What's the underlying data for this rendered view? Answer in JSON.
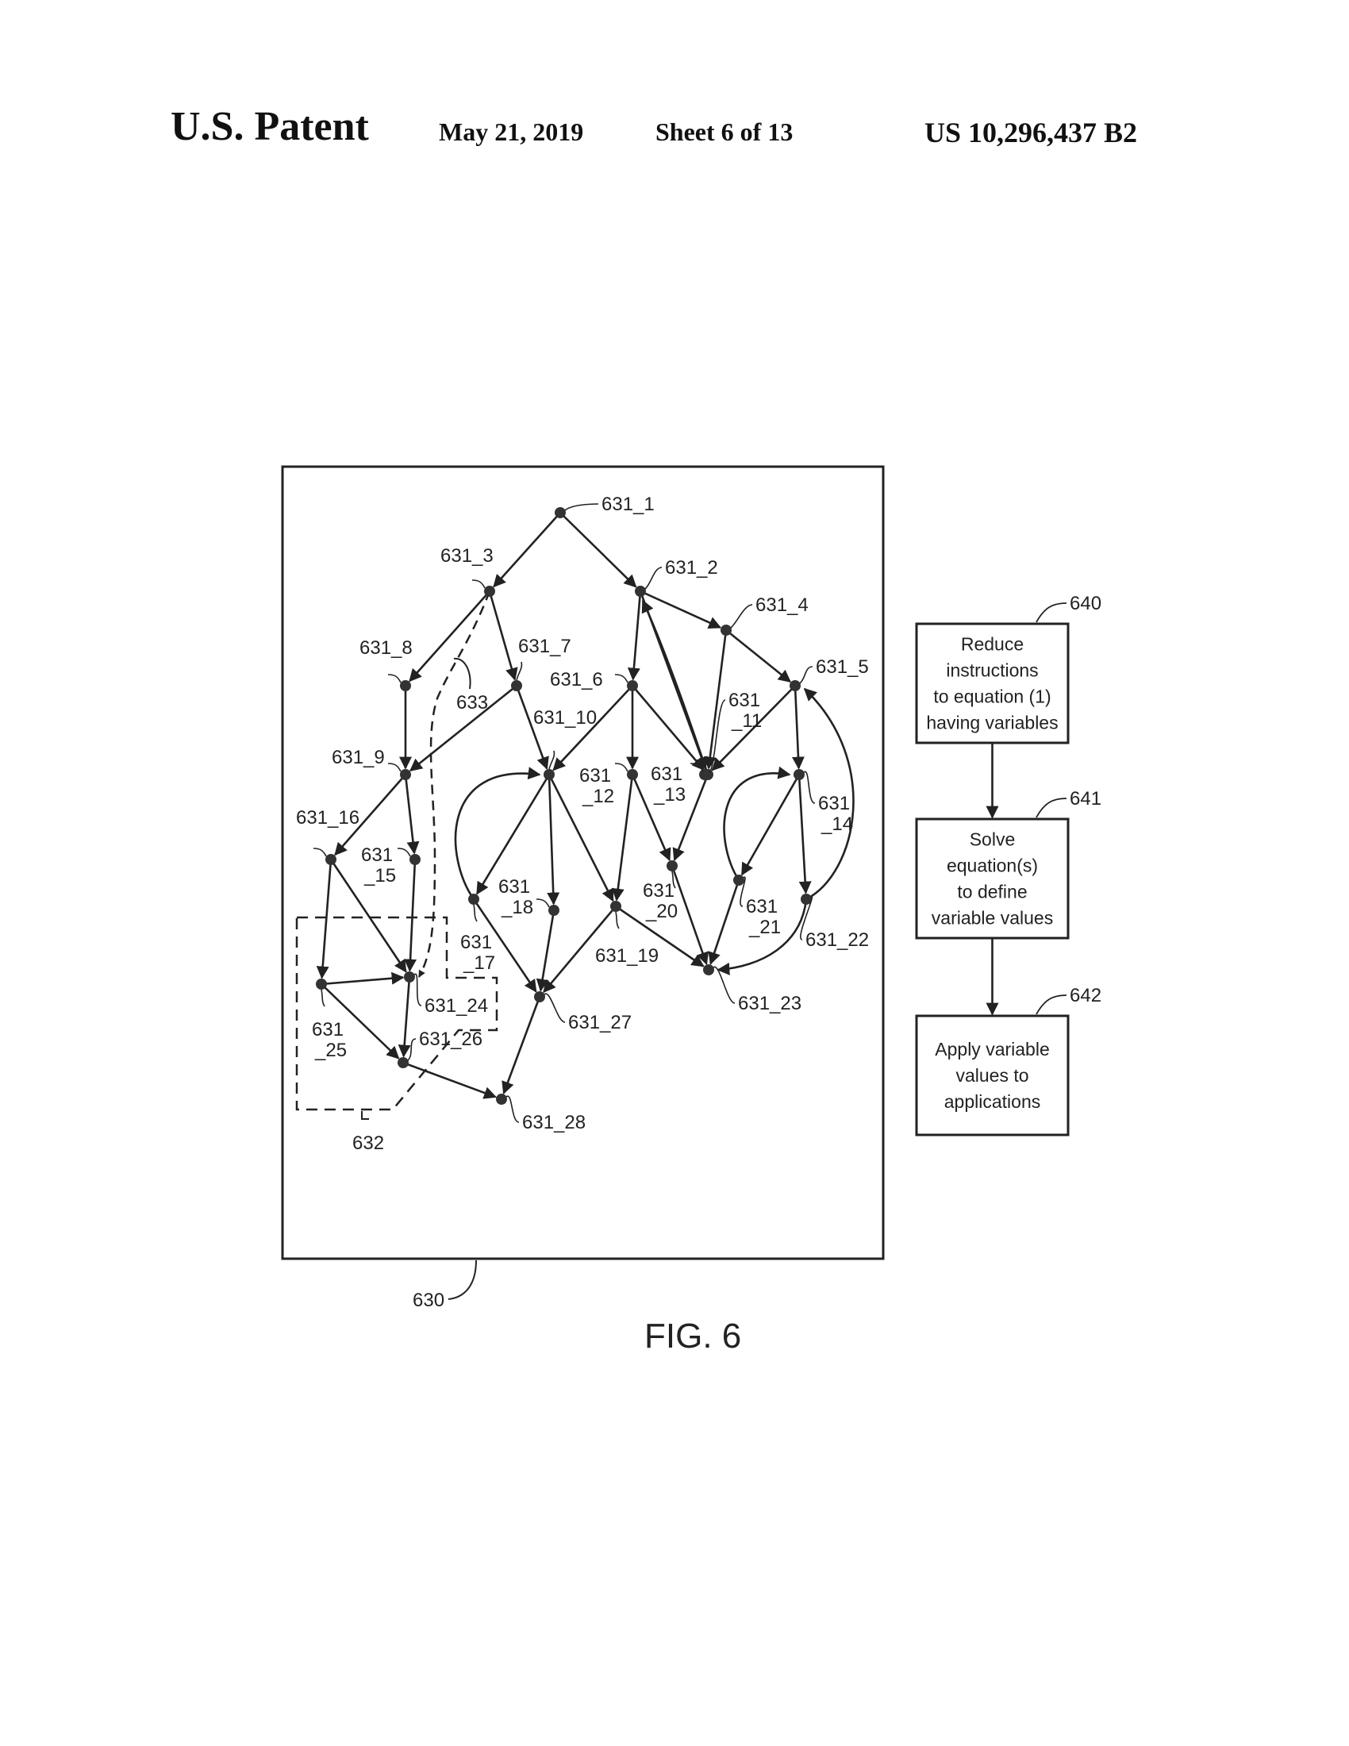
{
  "header": {
    "title": "U.S. Patent",
    "date": "May 21, 2019",
    "sheet": "Sheet 6 of 13",
    "patent_number": "US 10,296,437 B2"
  },
  "figure": {
    "caption": "FIG. 6",
    "frame_ref": "630",
    "group_ref": "632",
    "path_ref": "633",
    "nodes": [
      {
        "id": "n1",
        "l1": "631_1",
        "l2": ""
      },
      {
        "id": "n2",
        "l1": "631_2",
        "l2": ""
      },
      {
        "id": "n3",
        "l1": "631_3",
        "l2": ""
      },
      {
        "id": "n4",
        "l1": "631_4",
        "l2": ""
      },
      {
        "id": "n5",
        "l1": "631_5",
        "l2": ""
      },
      {
        "id": "n6",
        "l1": "631_6",
        "l2": ""
      },
      {
        "id": "n7",
        "l1": "631_7",
        "l2": ""
      },
      {
        "id": "n8",
        "l1": "631_8",
        "l2": ""
      },
      {
        "id": "n9",
        "l1": "631_9",
        "l2": ""
      },
      {
        "id": "n10",
        "l1": "631_10",
        "l2": ""
      },
      {
        "id": "n11",
        "l1": "631",
        "l2": "_11"
      },
      {
        "id": "n12",
        "l1": "631",
        "l2": "_12"
      },
      {
        "id": "n13",
        "l1": "631",
        "l2": "_13"
      },
      {
        "id": "n14",
        "l1": "631",
        "l2": "_14"
      },
      {
        "id": "n15",
        "l1": "631",
        "l2": "_15"
      },
      {
        "id": "n16",
        "l1": "631_16",
        "l2": ""
      },
      {
        "id": "n17",
        "l1": "631",
        "l2": "_17"
      },
      {
        "id": "n18",
        "l1": "631",
        "l2": "_18"
      },
      {
        "id": "n19",
        "l1": "631_19",
        "l2": ""
      },
      {
        "id": "n20",
        "l1": "631",
        "l2": "_20"
      },
      {
        "id": "n21",
        "l1": "631",
        "l2": "_21"
      },
      {
        "id": "n22",
        "l1": "631_22",
        "l2": ""
      },
      {
        "id": "n23",
        "l1": "631_23",
        "l2": ""
      },
      {
        "id": "n24",
        "l1": "631_24",
        "l2": ""
      },
      {
        "id": "n25",
        "l1": "631",
        "l2": "_25"
      },
      {
        "id": "n26",
        "l1": "631_26",
        "l2": ""
      },
      {
        "id": "n27",
        "l1": "631_27",
        "l2": ""
      },
      {
        "id": "n28",
        "l1": "631_28",
        "l2": ""
      }
    ],
    "edges": [
      [
        "n1",
        "n3"
      ],
      [
        "n1",
        "n2"
      ],
      [
        "n2",
        "n4"
      ],
      [
        "n2",
        "n6"
      ],
      [
        "n2",
        "n13"
      ],
      [
        "n13",
        "n2"
      ],
      [
        "n4",
        "n5"
      ],
      [
        "n4",
        "n13"
      ],
      [
        "n5",
        "n13"
      ],
      [
        "n5",
        "n14"
      ],
      [
        "n3",
        "n8"
      ],
      [
        "n3",
        "n7"
      ],
      [
        "n8",
        "n9"
      ],
      [
        "n7",
        "n9"
      ],
      [
        "n7",
        "n10"
      ],
      [
        "n6",
        "n10"
      ],
      [
        "n6",
        "n12"
      ],
      [
        "n6",
        "n13"
      ],
      [
        "n9",
        "n16"
      ],
      [
        "n9",
        "n15"
      ],
      [
        "n16",
        "n25"
      ],
      [
        "n16",
        "n24"
      ],
      [
        "n15",
        "n24"
      ],
      [
        "n10",
        "n17"
      ],
      [
        "n10",
        "n18"
      ],
      [
        "n10",
        "n19"
      ],
      [
        "n17",
        "n10"
      ],
      [
        "n12",
        "n19"
      ],
      [
        "n12",
        "n20"
      ],
      [
        "n13",
        "n20"
      ],
      [
        "n20",
        "n23"
      ],
      [
        "n19",
        "n23"
      ],
      [
        "n19",
        "n27"
      ],
      [
        "n17",
        "n27"
      ],
      [
        "n18",
        "n27"
      ],
      [
        "n14",
        "n21"
      ],
      [
        "n14",
        "n22"
      ],
      [
        "n21",
        "n14"
      ],
      [
        "n21",
        "n23"
      ],
      [
        "n22",
        "n23"
      ],
      [
        "n22",
        "n5"
      ],
      [
        "n25",
        "n24"
      ],
      [
        "n25",
        "n26"
      ],
      [
        "n24",
        "n26"
      ],
      [
        "n26",
        "n28"
      ],
      [
        "n27",
        "n28"
      ],
      [
        "n3",
        "n24"
      ]
    ]
  },
  "flow": [
    {
      "ref": "640",
      "lines": [
        "Reduce",
        "instructions",
        "to equation (1)",
        "having variables"
      ]
    },
    {
      "ref": "641",
      "lines": [
        "Solve",
        "equation(s)",
        "to define",
        "variable values"
      ]
    },
    {
      "ref": "642",
      "lines": [
        "Apply variable",
        "values to",
        "applications"
      ]
    }
  ]
}
